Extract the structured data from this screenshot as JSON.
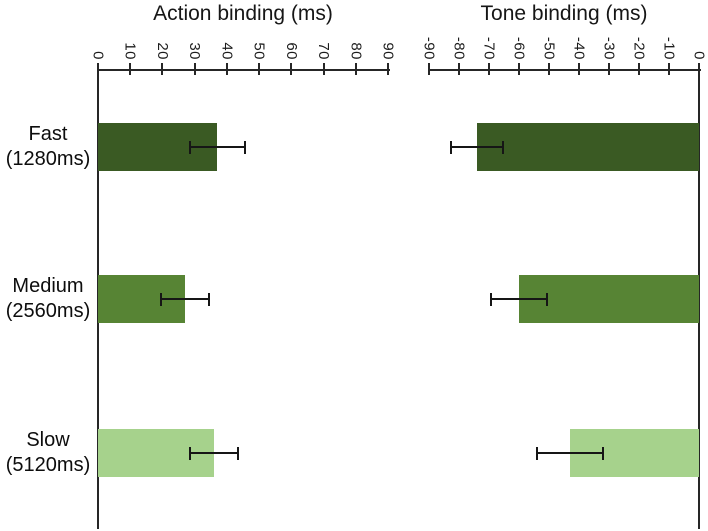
{
  "chart_data": {
    "type": "bar",
    "orientation": "horizontal",
    "grid": false,
    "legend": null,
    "categories": [
      {
        "line1": "Fast",
        "line2": "(1280ms)"
      },
      {
        "line1": "Medium",
        "line2": "(2560ms)"
      },
      {
        "line1": "Slow",
        "line2": "(5120ms)"
      }
    ],
    "bar_colors": [
      "#3a5a23",
      "#578434",
      "#a6d28c"
    ],
    "error_bar_color": "#161616",
    "axis_color": "#262626",
    "panels": [
      {
        "title": "Action binding (ms)",
        "xlim": [
          0,
          90
        ],
        "zero_side": "left",
        "ticks": [
          0,
          10,
          20,
          30,
          40,
          50,
          60,
          70,
          80,
          90
        ],
        "tick_labels": [
          "0",
          "10",
          "20",
          "30",
          "40",
          "50",
          "60",
          "70",
          "80",
          "90"
        ],
        "values": [
          37,
          27,
          36
        ],
        "errors": [
          8.5,
          7.4,
          7.6
        ]
      },
      {
        "title": "Tone binding (ms)",
        "xlim": [
          -90,
          0
        ],
        "zero_side": "right",
        "ticks": [
          -90,
          -80,
          -70,
          -60,
          -50,
          -40,
          -30,
          -20,
          -10,
          0
        ],
        "tick_labels": [
          "-90",
          "-80",
          "-70",
          "-60",
          "-50",
          "-40",
          "-30",
          "-20",
          "-10",
          "0"
        ],
        "values": [
          -74,
          -60,
          -43
        ],
        "errors": [
          8.6,
          9.2,
          10.9
        ]
      }
    ]
  }
}
